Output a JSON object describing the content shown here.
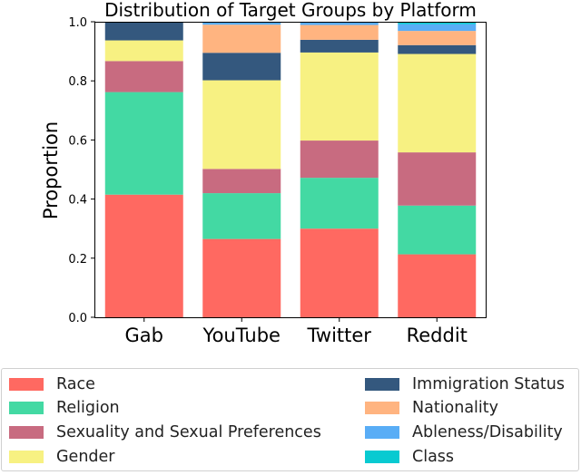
{
  "chart_data": {
    "type": "bar",
    "stacked": true,
    "title": "Distribution of Target Groups by Platform",
    "xlabel": "",
    "ylabel": "Proportion",
    "ylim": [
      0,
      1.0
    ],
    "yticks": [
      "0.0",
      "0.2",
      "0.4",
      "0.6",
      "0.8",
      "1.0"
    ],
    "categories": [
      "Gab",
      "YouTube",
      "Twitter",
      "Reddit"
    ],
    "legend_position": "bottom",
    "series": [
      {
        "name": "Race",
        "color": "#ff6961",
        "values": [
          0.415,
          0.265,
          0.3,
          0.213
        ]
      },
      {
        "name": "Religion",
        "color": "#43d9a3",
        "values": [
          0.347,
          0.155,
          0.172,
          0.165
        ]
      },
      {
        "name": "Sexuality and Sexual Preferences",
        "color": "#c86b80",
        "values": [
          0.105,
          0.082,
          0.126,
          0.18
        ]
      },
      {
        "name": "Gender",
        "color": "#f7f182",
        "values": [
          0.07,
          0.3,
          0.298,
          0.333
        ]
      },
      {
        "name": "Immigration Status",
        "color": "#34587e",
        "values": [
          0.063,
          0.093,
          0.043,
          0.03
        ]
      },
      {
        "name": "Nationality",
        "color": "#ffb480",
        "values": [
          0.0,
          0.095,
          0.05,
          0.048
        ]
      },
      {
        "name": "Ableness/Disability",
        "color": "#59adf6",
        "values": [
          0.0,
          0.01,
          0.011,
          0.023
        ]
      },
      {
        "name": "Class",
        "color": "#08cad1",
        "values": [
          0.0,
          0.0,
          0.0,
          0.008
        ]
      }
    ]
  }
}
